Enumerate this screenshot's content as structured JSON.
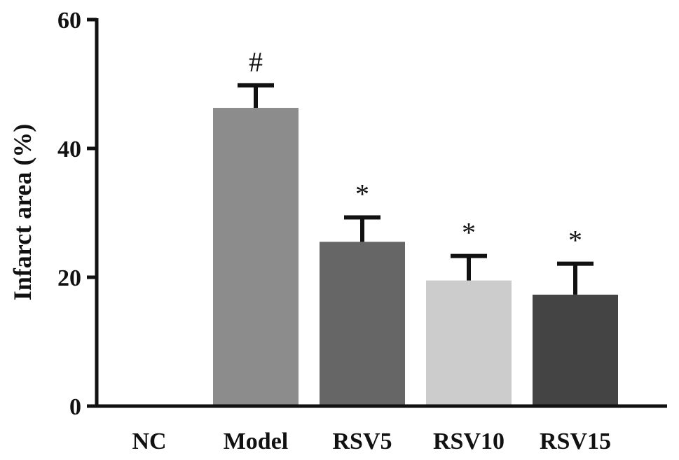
{
  "chart_data": {
    "type": "bar",
    "title": "",
    "xlabel": "",
    "ylabel": "Infarct area (%)",
    "ylim": [
      0,
      60
    ],
    "yticks": [
      0,
      20,
      40,
      60
    ],
    "grid": false,
    "legend": "none",
    "categories": [
      "NC",
      "Model",
      "RSV5",
      "RSV10",
      "RSV15"
    ],
    "values": [
      0,
      46.3,
      25.5,
      19.5,
      17.3
    ],
    "errors": [
      0,
      3.5,
      3.8,
      3.8,
      4.8
    ],
    "annotations": [
      "",
      "#",
      "*",
      "*",
      "*"
    ],
    "colors": [
      "#9a9a9a",
      "#8c8c8c",
      "#666666",
      "#cccccc",
      "#444444"
    ],
    "axis_color": "#111111"
  }
}
